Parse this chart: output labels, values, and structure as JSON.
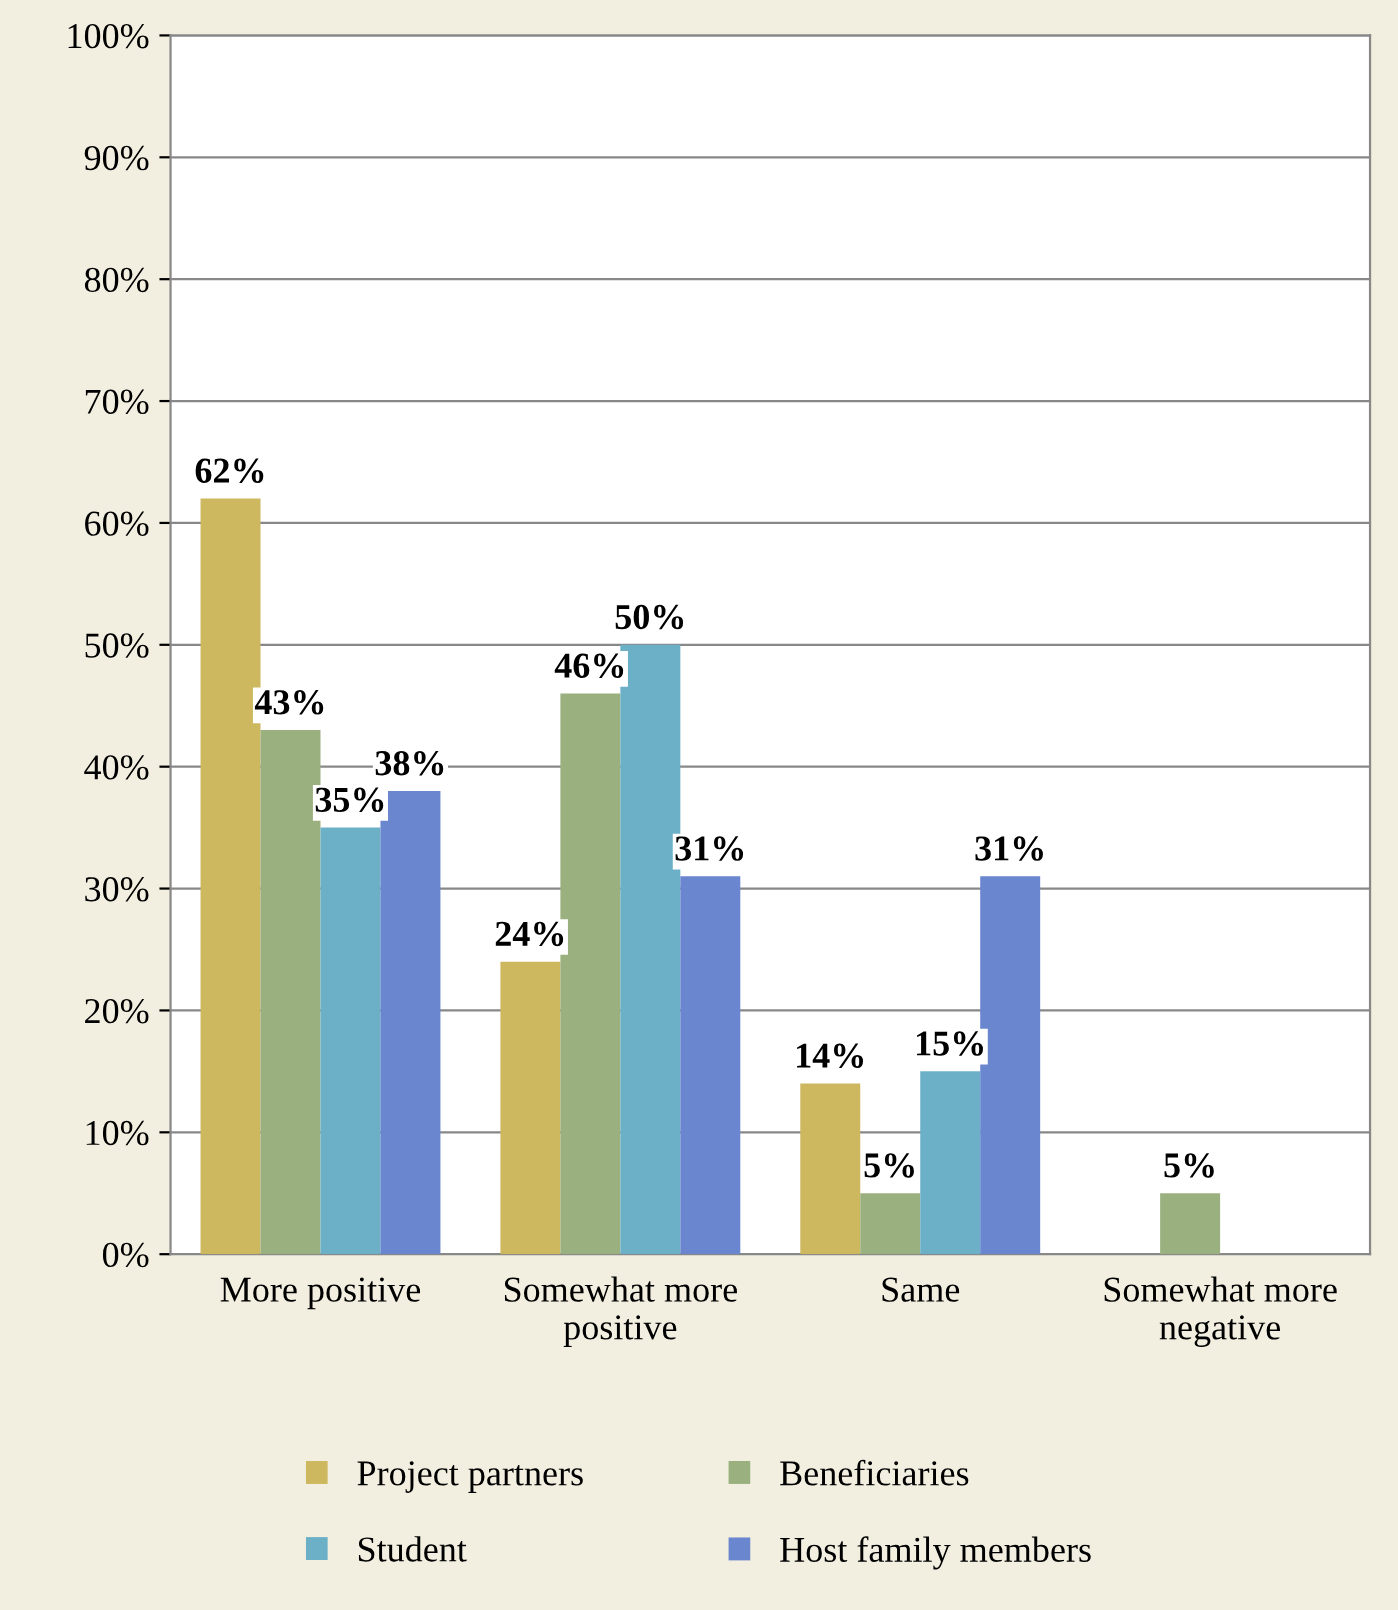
{
  "chart_data": {
    "type": "bar",
    "categories": [
      "More positive",
      "Somewhat more positive",
      "Same",
      "Somewhat more negative"
    ],
    "series": [
      {
        "name": "Project partners",
        "color": "#cdb860",
        "values": [
          62,
          24,
          14,
          null
        ],
        "value_labels": [
          "62%",
          "24%",
          "14%",
          null
        ]
      },
      {
        "name": "Beneficiaries",
        "color": "#9bb07f",
        "values": [
          43,
          46,
          5,
          5
        ],
        "value_labels": [
          "43%",
          "46%",
          "5%",
          "5%"
        ]
      },
      {
        "name": "Student",
        "color": "#6cb0c8",
        "values": [
          35,
          50,
          15,
          null
        ],
        "value_labels": [
          "35%",
          "50%",
          "15%",
          null
        ]
      },
      {
        "name": "Host family members",
        "color": "#6a86cf",
        "values": [
          38,
          31,
          31,
          null
        ],
        "value_labels": [
          "38%",
          "31%",
          "31%",
          null
        ]
      }
    ],
    "ylim": [
      0,
      100
    ],
    "yticks": [
      {
        "value": 0,
        "label": "0%"
      },
      {
        "value": 10,
        "label": "10%"
      },
      {
        "value": 20,
        "label": "20%"
      },
      {
        "value": 30,
        "label": "30%"
      },
      {
        "value": 40,
        "label": "40%"
      },
      {
        "value": 50,
        "label": "50%"
      },
      {
        "value": 60,
        "label": "60%"
      },
      {
        "value": 70,
        "label": "70%"
      },
      {
        "value": 80,
        "label": "80%"
      },
      {
        "value": 90,
        "label": "90%"
      },
      {
        "value": 100,
        "label": "100%"
      }
    ],
    "grid": "y",
    "legend": "bottom"
  }
}
